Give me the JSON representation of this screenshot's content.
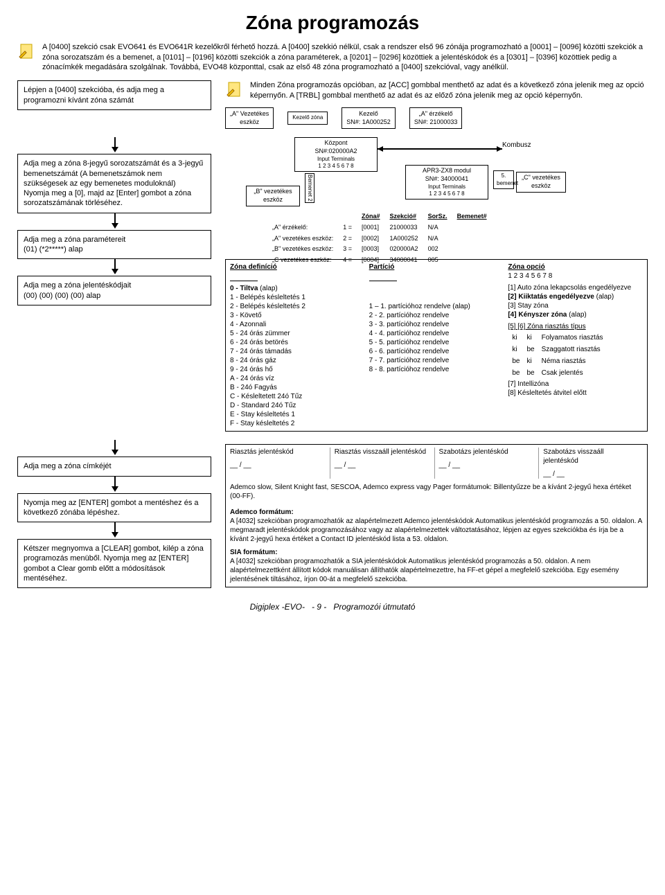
{
  "title": "Zóna programozás",
  "intro": {
    "line1": "A [0400] szekció csak EVO641 és EVO641R kezelőkről férhető hozzá. A [0400] szekkió nélkül, csak a rendszer első 96 zónája programozható a [0001] – [0096] közötti szekciók a zóna sorozatszám és a bemenet, a [0101] – [0196] közötti szekciók a zóna paraméterek, a [0201] – [0296] közöttiek a jelentéskódok és a [0301] – [0396] közöttiek pedig a zónacímkék megadására szolgálnak. Továbbá, EVO48 központtal, csak az első 48 zóna programozható a [0400] szekcióval, vagy anélkül."
  },
  "step1": "Lépjen a [0400] szekcióba, és adja meg a programozni kívánt zóna számát",
  "info1": "Minden Zóna programozás opcióban, az [ACC] gombbal menthető az adat és a következő zóna jelenik meg az opció képernyőn. A [TRBL] gombbal menthető az adat és az előző zóna jelenik meg az opció képernyőn.",
  "devA": {
    "t": "„A\" Vezetékes",
    "b": "eszköz"
  },
  "devK": {
    "label": "Kezelő zóna"
  },
  "devKez": {
    "t": "Kezelő",
    "b": "SN#: 1A000252"
  },
  "devAe": {
    "t": "„A\" érzékelő",
    "b": "SN#: 21000033"
  },
  "step2": "Adja meg a zóna 8-jegyű sorozatszámát és a 3-jegyű bemenetszámát (A bemenetszámok nem szükségesek az egy bemenetes moduloknál)\nNyomja meg a [0], majd az [Enter] gombot a zóna sorozatszámának törléséhez.",
  "step3": "Adja meg a zóna paramétereit\n(01) (*2*****) alap",
  "step4": "Adja meg a zóna jelentéskódjait\n(00) (00) (00) (00) alap",
  "step5": "Adja meg a zóna címkéjét",
  "step6": "Nyomja meg az [ENTER] gombot a mentéshez és a következő zónába lépéshez.",
  "step7": "Kétszer megnyomva a [CLEAR] gombot, kilép a zóna programozás menüből. Nyomja meg az [ENTER] gombot a Clear gomb előtt a módosítások mentéséhez.",
  "diag": {
    "kozpont": "Központ",
    "kozpontSN": "SN#:020000A2",
    "inputT": "Input Terminals",
    "nums": "1  2  3  4  5  6  7  8",
    "bVez": "„B\" vezetékes eszköz",
    "bemenet": "Bemenet 2",
    "apr": "APR3-ZX8 modul",
    "aprSN": "SN#: 34000041",
    "cVez": "„C\" vezetékes eszköz",
    "bem5": "5. bemenet",
    "kombusz": "Kombusz"
  },
  "zoneTable": {
    "h": [
      "Zóna#",
      "Szekció#",
      "SorSz.",
      "Bemenet#"
    ],
    "r": [
      [
        "„A\" érzékelő:",
        "1 =",
        "[0001]",
        "21000033",
        "N/A"
      ],
      [
        "„A\" vezetékes eszköz:",
        "2 =",
        "[0002]",
        "1A000252",
        "N/A"
      ],
      [
        "„B\" vezetékes eszköz:",
        "3 =",
        "[0003]",
        "020000A2",
        "002"
      ],
      [
        "„C vezetékes eszköz:",
        "4 =",
        "[0004]",
        "34000041",
        "005"
      ]
    ]
  },
  "def": {
    "title": "Zóna definíció",
    "items": [
      "0 - Tiltva (alap)",
      "1 - Belépés késleltetés 1",
      "2 - Belépés késleltetés 2",
      "3 - Követő",
      "4 - Azonnali",
      "5 - 24 órás zümmer",
      "6 - 24 órás betörés",
      "7 - 24 órás támadás",
      "8 - 24 órás gáz",
      "9 - 24 órás hő",
      "A - 24 órás víz",
      "B - 24ó Fagyás",
      "C - Késleltetett 24ó Tűz",
      "D - Standard 24ó Tűz",
      "E - Stay késleltetés 1",
      "F - Stay késleltetés 2"
    ]
  },
  "part": {
    "title": "Partíció",
    "items": [
      "1 – 1. partícióhoz rendelve (alap)",
      "2 - 2. partícióhoz rendelve",
      "3 - 3. partícióhoz rendelve",
      "4 - 4. partícióhoz rendelve",
      "5 - 5. partícióhoz rendelve",
      "6 - 6. partícióhoz rendelve",
      "7 - 7. partícióhoz rendelve",
      "8 - 8. partícióhoz rendelve"
    ]
  },
  "opt": {
    "title": "Zóna opció",
    "nums": "1 2 3 4 5 6 7 8",
    "lines": [
      "[1] Auto zóna lekapcsolás engedélyezve",
      "[2] Kiiktatás engedélyezve (alap)",
      "[3] Stay zóna",
      "[4] Kényszer zóna (alap)"
    ],
    "subhead": "[5]    [6]    Zóna riasztás típus",
    "rows": [
      [
        "ki",
        "ki",
        "Folyamatos riasztás"
      ],
      [
        "ki",
        "be",
        "Szaggatott riasztás"
      ],
      [
        "be",
        "ki",
        "Néma riasztás"
      ],
      [
        "be",
        "be",
        "Csak jelentés"
      ]
    ],
    "tail": [
      "[7] Intellizóna",
      "[8] Késleltetés átvitel előtt"
    ]
  },
  "rep": {
    "c1": "Riasztás jelentéskód",
    "c2": "Riasztás visszaáll jelentéskód",
    "c3": "Szabotázs jelentéskód",
    "c4": "Szabotázs visszaáll jelentéskód",
    "slash": "__ / __",
    "note": "Ademco slow, Silent Knight fast, SESCOA, Ademco express vagy Pager formátumok: Billentyűzze be a kívánt 2-jegyű hexa értéket (00-FF).",
    "ah": "Ademco formátum:",
    "at": "A [4032] szekcióban programozhatók az alapértelmezett Ademco jelentéskódok Automatikus jelentéskód programozás a 50. oldalon.  A megmaradt jelentéskódok programozásához vagy az alapértelmezettek változtatásához, lépjen az egyes szekciókba és írja be a kívánt 2-jegyű hexa értéket a Contact ID jelentéskód lista a 53. oldalon.",
    "sh": "SIA formátum:",
    "st": "A [4032] szekcióban programozhatók a SIA jelentéskódok Automatikus jelentéskód programozás a 50. oldalon. A nem alapértelmezettként állított kódok manuálisan állíthatók alapértelmezettre, ha FF-et gépel a megfelelő szekcióba. Egy esemény jelentésének tiltásához, írjon 00-át a megfelelő szekcióba."
  },
  "footer": {
    "a": "Digiplex -EVO-",
    "b": "- 9 -",
    "c": "Programozói útmutató"
  }
}
